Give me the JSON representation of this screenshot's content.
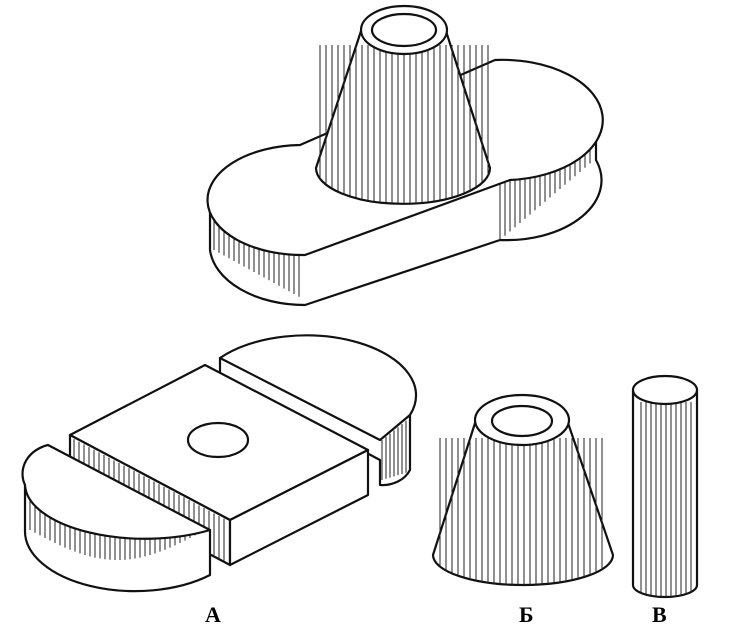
{
  "labels": {
    "part_a": "А",
    "part_b": "Б",
    "part_v": "В"
  },
  "colors": {
    "ink": "#111111",
    "paper": "#ffffff"
  }
}
